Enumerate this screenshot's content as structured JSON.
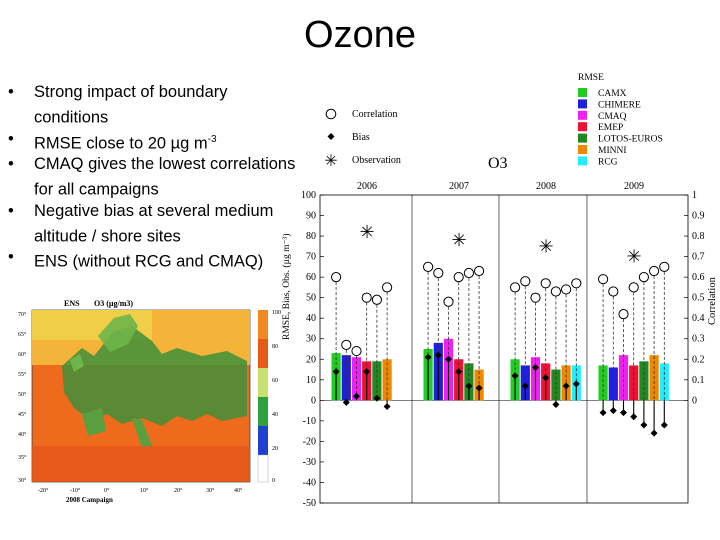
{
  "slide": {
    "title": "Ozone",
    "bullets": [
      {
        "text": "Strong impact of boundary conditions",
        "sup": ""
      },
      {
        "text": "RMSE close to 20 µg m",
        "sup": "-3"
      },
      {
        "text": "CMAQ gives the lowest correlations for all campaigns",
        "sup": ""
      },
      {
        "text": "Negative bias at several medium altitude / shore sites",
        "sup": ""
      },
      {
        "text": "ENS (without RCG and CMAQ)",
        "sup": ""
      }
    ]
  },
  "map": {
    "title_left": "ENS",
    "title_right": "O3 (µg/m3)",
    "caption": "2008 Campaign",
    "lat_labels": [
      "70°",
      "65°",
      "60°",
      "55°",
      "50°",
      "45°",
      "40°",
      "35°",
      "30°"
    ],
    "lon_labels": [
      "-20°",
      "-10°",
      "0°",
      "10°",
      "20°",
      "30°",
      "40°"
    ],
    "colorbar_labels": [
      "100",
      "80",
      "60",
      "40",
      "20",
      "0"
    ]
  },
  "chart_data": {
    "type": "bar",
    "title": "O3",
    "ylabel_left": "RMSE, Bias, Obs. (µg m⁻³)",
    "ylabel_right": "Correlation",
    "ylim": [
      -50,
      100
    ],
    "y2lim": [
      0,
      1
    ],
    "y_ticks": [
      "100",
      "90",
      "80",
      "70",
      "60",
      "50",
      "40",
      "30",
      "20",
      "10",
      "0",
      "-10",
      "-20",
      "-30",
      "-40",
      "-50"
    ],
    "y2_ticks": [
      "1",
      "0.9",
      "0.8",
      "0.7",
      "0.6",
      "0.5",
      "0.4",
      "0.3",
      "0.2",
      "0.1",
      "0"
    ],
    "legend_title": "RMSE",
    "legend_marker_labels": [
      "Correlation",
      "Bias",
      "Observation"
    ],
    "categories": [
      "2006",
      "2007",
      "2008",
      "2009"
    ],
    "observation": [
      82,
      78,
      75,
      70
    ],
    "series": [
      {
        "name": "CAMX",
        "color": "#22cc22",
        "rmse": [
          23,
          25,
          20,
          17
        ],
        "bias": [
          14,
          21,
          12,
          -6
        ],
        "corr": [
          0.6,
          0.65,
          0.55,
          0.59
        ]
      },
      {
        "name": "CHIMERE",
        "color": "#1f1fdd",
        "rmse": [
          22,
          28,
          17,
          16
        ],
        "bias": [
          -1,
          22,
          7,
          -5
        ],
        "corr": [
          0.27,
          0.62,
          0.58,
          0.53
        ]
      },
      {
        "name": "CMAQ",
        "color": "#ee22ee",
        "rmse": [
          21,
          30,
          21,
          22
        ],
        "bias": [
          2,
          20,
          16,
          -6
        ],
        "corr": [
          0.24,
          0.48,
          0.5,
          0.42
        ]
      },
      {
        "name": "EMEP",
        "color": "#ee1133",
        "rmse": [
          19,
          20,
          18,
          17
        ],
        "bias": [
          14,
          14,
          11,
          -8
        ],
        "corr": [
          0.5,
          0.6,
          0.57,
          0.55
        ]
      },
      {
        "name": "LOTOS-EUROS",
        "color": "#228822",
        "rmse": [
          19,
          18,
          15,
          19
        ],
        "bias": [
          1,
          7,
          -2,
          -12
        ],
        "corr": [
          0.49,
          0.62,
          0.53,
          0.6
        ]
      },
      {
        "name": "MINNI",
        "color": "#ee8800",
        "rmse": [
          20,
          15,
          17,
          22
        ],
        "bias": [
          -3,
          6,
          7,
          -16
        ],
        "corr": [
          0.55,
          0.63,
          0.54,
          0.63
        ]
      },
      {
        "name": "RCG",
        "color": "#22eeff",
        "rmse": [
          null,
          null,
          17,
          18
        ],
        "bias": [
          null,
          null,
          8,
          -12
        ],
        "corr": [
          null,
          null,
          0.57,
          0.65
        ]
      }
    ]
  }
}
